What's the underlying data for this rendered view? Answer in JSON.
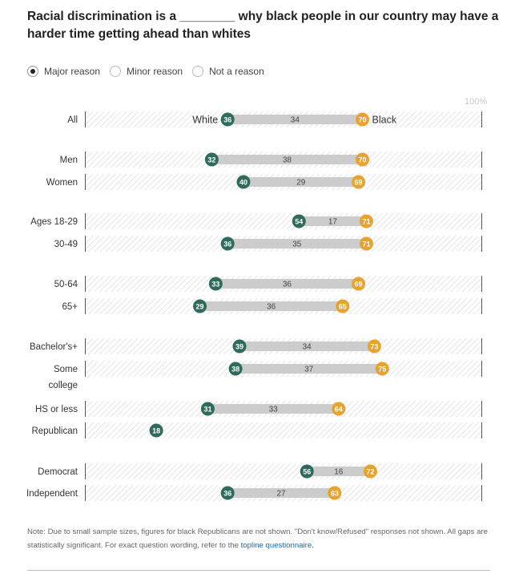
{
  "title": "Racial discrimination is a ________ why black people in our country may have a harder time getting ahead than whites",
  "controls": {
    "options": [
      "Major reason",
      "Minor reason",
      "Not a reason"
    ],
    "selected": "Major reason"
  },
  "chart_data": {
    "type": "dot-range",
    "title": "Racial discrimination is a ________ why black people in our country may have a harder time getting ahead than whites",
    "x_max_label": "100%",
    "xlim": [
      0,
      100
    ],
    "series": [
      {
        "name": "White",
        "color": "#2e6b5c"
      },
      {
        "name": "Black",
        "color": "#e8a32e"
      }
    ],
    "gap_color": "#cccccc",
    "rows": [
      {
        "label": "All",
        "white": 36,
        "black": 70,
        "gap": 34,
        "show_series_labels": true
      },
      {
        "label": "Men",
        "white": 32,
        "black": 70,
        "gap": 38
      },
      {
        "label": "Women",
        "white": 40,
        "black": 69,
        "gap": 29
      },
      {
        "label": "Ages 18-29",
        "white": 54,
        "black": 71,
        "gap": 17
      },
      {
        "label": "30-49",
        "white": 36,
        "black": 71,
        "gap": 35
      },
      {
        "label": "50-64",
        "white": 33,
        "black": 69,
        "gap": 36
      },
      {
        "label": "65+",
        "white": 29,
        "black": 65,
        "gap": 36
      },
      {
        "label": "Bachelor's+",
        "white": 39,
        "black": 73,
        "gap": 34
      },
      {
        "label": "Some college",
        "white": 38,
        "black": 75,
        "gap": 37
      },
      {
        "label": "HS or less",
        "white": 31,
        "black": 64,
        "gap": 33
      },
      {
        "label": "Republican",
        "white": 18,
        "black": null,
        "gap": null
      },
      {
        "label": "Democrat",
        "white": 56,
        "black": 72,
        "gap": 16
      },
      {
        "label": "Independent",
        "white": 36,
        "black": 63,
        "gap": 27
      }
    ]
  },
  "note": {
    "text": "Note: Due to small sample sizes, figures for black Republicans are not shown. \"Don't know/Refused\" responses not shown. All gaps are statistically significant. For exact question wording, refer to the ",
    "link": "topline questionnaire",
    "end": "."
  },
  "colors": {
    "white_dot": "#2e6b5c",
    "black_dot": "#e8a32e",
    "gap_bar": "#cccccc",
    "hatch": "#dddddd",
    "link": "#1a6aa5"
  }
}
